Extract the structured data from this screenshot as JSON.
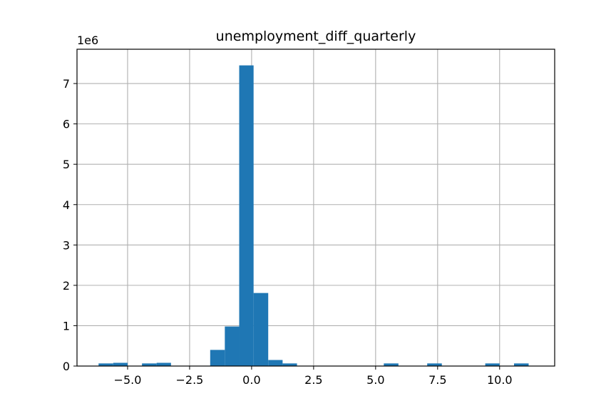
{
  "chart_data": {
    "type": "bar",
    "title": "unemployment_diff_quarterly",
    "xlabel": "",
    "ylabel": "",
    "y_offset_label": "1e6",
    "xlim": [
      -7.04,
      12.22
    ],
    "ylim": [
      0,
      7.85
    ],
    "grid": true,
    "bar_color": "#1f77b4",
    "x_ticks": [
      -5.0,
      -2.5,
      0.0,
      2.5,
      5.0,
      7.5,
      10.0
    ],
    "x_tick_labels": [
      "−5.0",
      "−2.5",
      "0.0",
      "2.5",
      "5.0",
      "7.5",
      "10.0"
    ],
    "y_ticks": [
      0,
      1,
      2,
      3,
      4,
      5,
      6,
      7
    ],
    "y_tick_labels": [
      "0",
      "1",
      "2",
      "3",
      "4",
      "5",
      "6",
      "7"
    ],
    "bins": [
      {
        "x0": -6.17,
        "x1": -5.58,
        "value": 0.065
      },
      {
        "x0": -5.58,
        "x1": -5.0,
        "value": 0.08
      },
      {
        "x0": -4.42,
        "x1": -3.83,
        "value": 0.065
      },
      {
        "x0": -3.83,
        "x1": -3.25,
        "value": 0.08
      },
      {
        "x0": -1.67,
        "x1": -1.08,
        "value": 0.4
      },
      {
        "x0": -1.08,
        "x1": -0.5,
        "value": 0.98
      },
      {
        "x0": -0.5,
        "x1": 0.08,
        "value": 7.45
      },
      {
        "x0": 0.08,
        "x1": 0.67,
        "value": 1.81
      },
      {
        "x0": 0.67,
        "x1": 1.25,
        "value": 0.15
      },
      {
        "x0": 1.25,
        "x1": 1.83,
        "value": 0.065
      },
      {
        "x0": 5.33,
        "x1": 5.92,
        "value": 0.065
      },
      {
        "x0": 7.08,
        "x1": 7.67,
        "value": 0.065
      },
      {
        "x0": 9.42,
        "x1": 10.0,
        "value": 0.065
      },
      {
        "x0": 10.58,
        "x1": 11.17,
        "value": 0.065
      }
    ]
  }
}
